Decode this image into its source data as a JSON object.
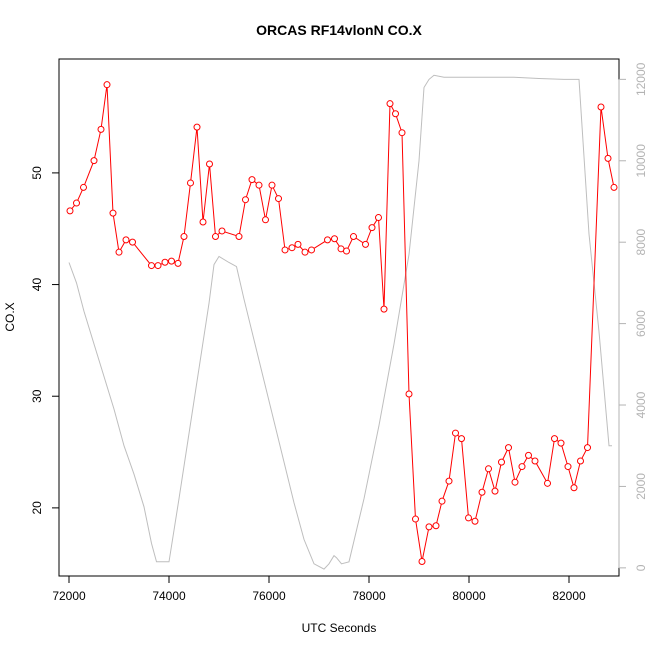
{
  "chart_data": {
    "type": "line",
    "title": "ORCAS RF14vlonN CO.X",
    "xlabel": "UTC Seconds",
    "ylabel": "CO.X",
    "xlim": [
      71800,
      83000
    ],
    "ylim": [
      13.9,
      60.2
    ],
    "y2lim": [
      -200,
      12500
    ],
    "x_ticks": [
      72000,
      74000,
      76000,
      78000,
      80000,
      82000
    ],
    "y_ticks": [
      20,
      30,
      40,
      50
    ],
    "y2_ticks": [
      0,
      2000,
      4000,
      6000,
      8000,
      10000,
      12000
    ],
    "series": [
      {
        "color": "#ff0000",
        "marker": "open-circle",
        "x": [
          72020,
          72150,
          72290,
          72500,
          72640,
          72760,
          72880,
          73000,
          73140,
          73270,
          73650,
          73780,
          73920,
          74050,
          74180,
          74300,
          74430,
          74560,
          74680,
          74810,
          74930,
          75060,
          75400,
          75530,
          75660,
          75800,
          75930,
          76060,
          76190,
          76320,
          76460,
          76580,
          76720,
          76850,
          77170,
          77310,
          77440,
          77550,
          77690,
          77930,
          78060,
          78190,
          78300,
          78420,
          78530,
          78660,
          78800,
          78930,
          79060,
          79200,
          79340,
          79460,
          79600,
          79730,
          79850,
          79990,
          80120,
          80260,
          80390,
          80520,
          80650,
          80790,
          80920,
          81060,
          81190,
          81320,
          81570,
          81710,
          81840,
          81980,
          82100,
          82230,
          82370,
          82640,
          82780,
          82900
        ],
        "y": [
          46.6,
          47.3,
          48.7,
          51.1,
          53.9,
          57.9,
          46.4,
          42.9,
          44.0,
          43.8,
          41.7,
          41.7,
          42.0,
          42.1,
          41.9,
          44.3,
          49.1,
          54.1,
          45.6,
          50.8,
          44.3,
          44.8,
          44.3,
          47.6,
          49.4,
          48.9,
          45.8,
          48.9,
          47.7,
          43.1,
          43.3,
          43.6,
          42.9,
          43.1,
          44.0,
          44.1,
          43.2,
          43.0,
          44.3,
          43.6,
          45.1,
          46.0,
          37.8,
          56.2,
          55.3,
          53.6,
          30.2,
          19.0,
          15.2,
          18.3,
          18.4,
          20.6,
          22.4,
          26.7,
          26.2,
          19.1,
          18.8,
          21.4,
          23.5,
          21.5,
          24.1,
          25.4,
          22.3,
          23.7,
          24.7,
          24.2,
          22.2,
          26.2,
          25.8,
          23.7,
          21.8,
          24.2,
          25.4,
          55.9,
          51.3,
          48.7
        ]
      },
      {
        "color": "#bebebe",
        "axis": "right",
        "x": [
          72000,
          72150,
          72300,
          72500,
          72700,
          72900,
          73100,
          73300,
          73500,
          73650,
          73750,
          73900,
          74000,
          74200,
          74400,
          74600,
          74800,
          74900,
          75000,
          75200,
          75350,
          75500,
          75700,
          75900,
          76100,
          76300,
          76500,
          76700,
          76900,
          77100,
          77200,
          77300,
          77350,
          77450,
          77600,
          77900,
          78200,
          78500,
          78800,
          79000,
          79100,
          79200,
          79300,
          79500,
          79900,
          80400,
          80900,
          81400,
          81900,
          82200,
          82400,
          82600,
          82800,
          82860
        ],
        "y": [
          7500,
          7000,
          6300,
          5500,
          4700,
          3900,
          3000,
          2300,
          1500,
          600,
          150,
          150,
          150,
          1700,
          3300,
          4900,
          6500,
          7450,
          7650,
          7500,
          7400,
          6600,
          5600,
          4600,
          3600,
          2600,
          1600,
          700,
          100,
          -30,
          100,
          300,
          250,
          100,
          150,
          1700,
          3500,
          5500,
          7700,
          10000,
          11800,
          12000,
          12100,
          12050,
          12050,
          12050,
          12050,
          12020,
          12000,
          12000,
          8200,
          5800,
          3000,
          3000
        ]
      }
    ]
  }
}
